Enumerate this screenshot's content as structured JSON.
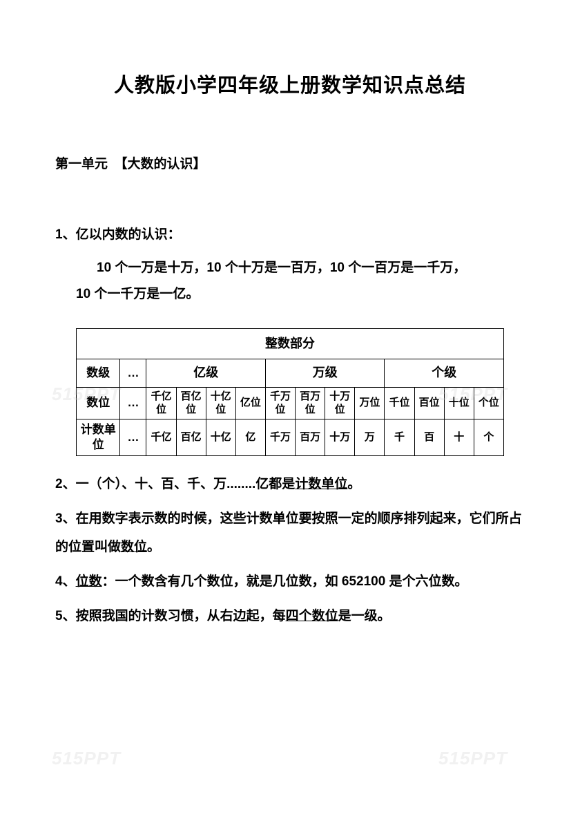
{
  "title": "人教版小学四年级上册数学知识点总结",
  "unit_heading": "第一单元　【大数的认识】",
  "point1_label": "1、亿以内数的认识：",
  "point1_line1": "10 个一万是十万，10 个十万是一百万，10 个一百万是一千万，",
  "point1_line2": "10 个一千万是一亿。",
  "table": {
    "header": "整数部分",
    "row_labels": [
      "数级",
      "数位",
      "计数单位"
    ],
    "dots": "…",
    "groups": [
      "亿级",
      "万级",
      "个级"
    ],
    "positions_yi": [
      "千亿位",
      "百亿位",
      "十亿位",
      "亿位"
    ],
    "positions_wan": [
      "千万位",
      "百万位",
      "十万位",
      "万位"
    ],
    "positions_ge": [
      "千位",
      "百位",
      "十位",
      "个位"
    ],
    "units_yi": [
      "千亿",
      "百亿",
      "十亿",
      "亿"
    ],
    "units_wan": [
      "千万",
      "百万",
      "十万",
      "万"
    ],
    "units_ge": [
      "千",
      "百",
      "十",
      "个"
    ]
  },
  "point2_pre": "2、一（个）、十、百、千、万........亿都是",
  "point2_underline": "计数单位",
  "point2_post": "。",
  "point3_pre": "3、在用数字表示数的时候，这些计数单位要按照一定的顺序排列起来，它们所占的位置叫做",
  "point3_underline": "数位",
  "point3_post": "。",
  "point4_pre": "4、",
  "point4_underline": "位数",
  "point4_post": "：一个数含有几个数位，就是几位数，如 652100 是个六位数。",
  "point5_pre": "5、按照我国的计数习惯，从右边起，每",
  "point5_underline": "四个数位",
  "point5_post": "是一级。",
  "watermark": "515PPT"
}
